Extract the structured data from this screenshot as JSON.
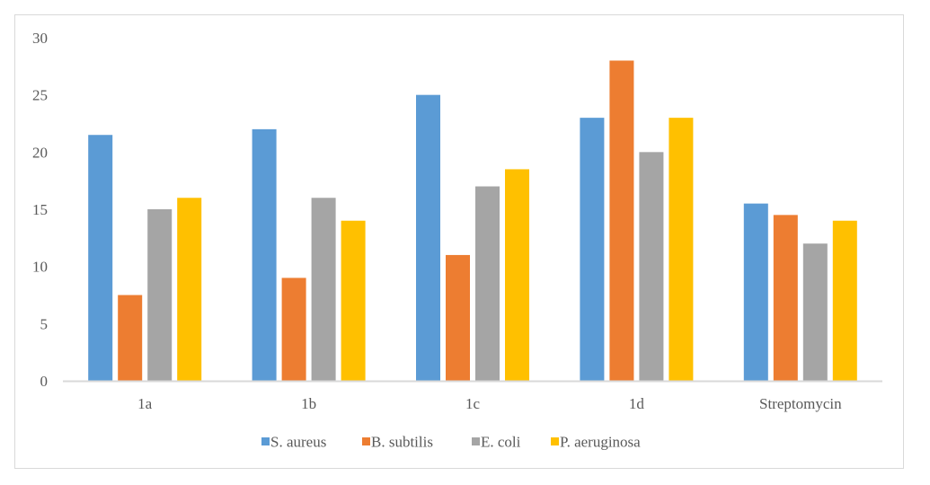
{
  "chart_data": {
    "type": "bar",
    "title": "",
    "xlabel": "",
    "ylabel": "",
    "ylim": [
      0,
      30
    ],
    "yticks": [
      0,
      5,
      10,
      15,
      20,
      25,
      30
    ],
    "grid": false,
    "legend_position": "bottom",
    "categories": [
      "1a",
      "1b",
      "1c",
      "1d",
      "Streptomycin"
    ],
    "series": [
      {
        "name": "S. aureus",
        "color": "#5b9bd5",
        "values": [
          21.5,
          22,
          25,
          23,
          15.5
        ]
      },
      {
        "name": "B. subtilis",
        "color": "#ed7d31",
        "values": [
          7.5,
          9,
          11,
          28,
          14.5
        ]
      },
      {
        "name": "E. coli",
        "color": "#a5a5a5",
        "values": [
          15,
          16,
          17,
          20,
          12
        ]
      },
      {
        "name": "P. aeruginosa",
        "color": "#ffc000",
        "values": [
          16,
          14,
          18.5,
          23,
          14
        ]
      }
    ]
  }
}
